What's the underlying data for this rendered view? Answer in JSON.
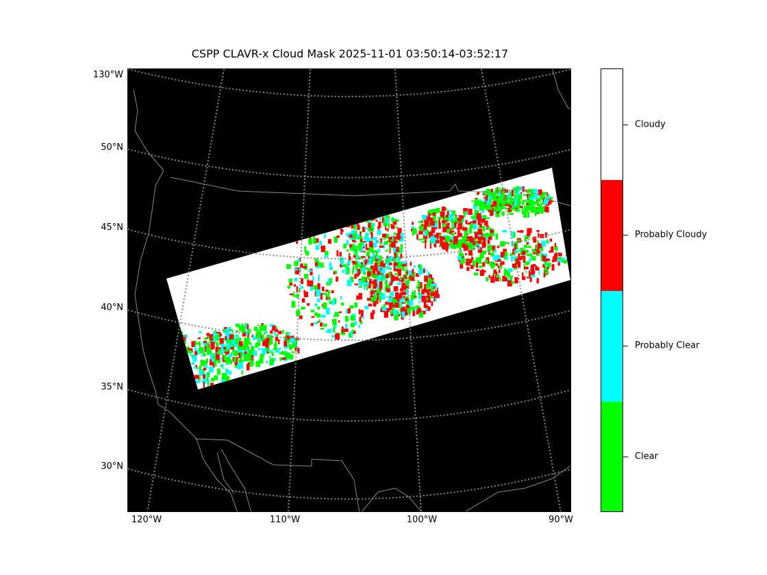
{
  "title": "CSPP CLAVR-x Cloud Mask 2025-11-01 03:50:14-03:52:17",
  "map": {
    "projection": "lambert-conformal",
    "background_color": "#000000",
    "gridline_color": "#888888",
    "coastline_color": "#888888",
    "lat_labels": [
      "130°W",
      "50°N",
      "45°N",
      "40°N",
      "35°N",
      "30°N"
    ],
    "lon_labels": [
      "120°W",
      "110°W",
      "100°W",
      "90°W"
    ]
  },
  "legend": {
    "classes": [
      {
        "label": "Cloudy",
        "color": "#ffffff"
      },
      {
        "label": "Probably Cloudy",
        "color": "#ff0000"
      },
      {
        "label": "Probably Clear",
        "color": "#00ffff"
      },
      {
        "label": "Clear",
        "color": "#00ff00"
      }
    ]
  }
}
